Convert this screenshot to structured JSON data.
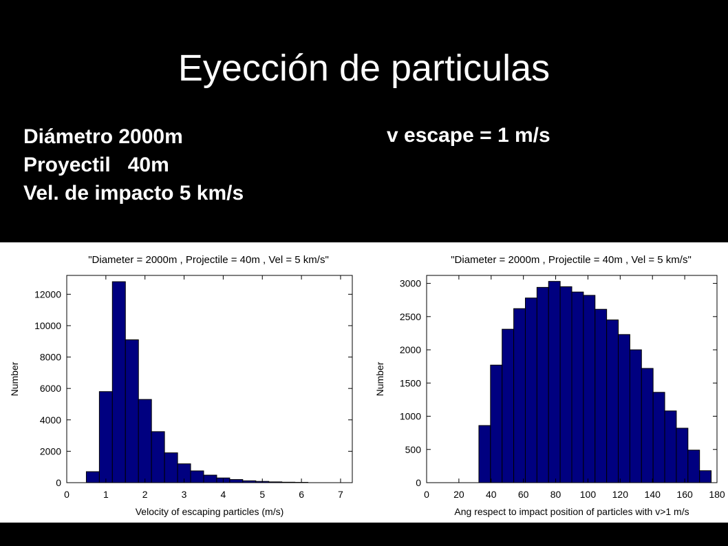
{
  "slide": {
    "title": "Eyección de particulas",
    "params": [
      "Diámetro 2000m",
      "Proyectil   40m",
      "Vel. de impacto 5 km/s"
    ],
    "v_escape": "v escape = 1 m/s"
  },
  "bar_color": "#000080",
  "chart_data": [
    {
      "type": "bar",
      "title": "\"Diameter = 2000m , Projectile = 40m , Vel = 5 km/s\"",
      "xlabel": "Velocity of escaping particles (m/s)",
      "ylabel": "Number",
      "xlim": [
        0,
        7.3
      ],
      "ylim": [
        0,
        13200
      ],
      "xticks": [
        0,
        1,
        2,
        3,
        4,
        5,
        6,
        7
      ],
      "yticks": [
        0,
        2000,
        4000,
        6000,
        8000,
        10000,
        12000
      ],
      "bin_width": 0.3333,
      "x": [
        0.667,
        1.0,
        1.333,
        1.667,
        2.0,
        2.333,
        2.667,
        3.0,
        3.333,
        3.667,
        4.0,
        4.333,
        4.667,
        5.0,
        5.333,
        5.667,
        6.0
      ],
      "values": [
        700,
        5800,
        12800,
        9100,
        5300,
        3250,
        1900,
        1200,
        750,
        480,
        300,
        200,
        120,
        80,
        50,
        30,
        20
      ]
    },
    {
      "type": "bar",
      "title": "\"Diameter = 2000m , Projectile = 40m , Vel = 5 km/s\"",
      "xlabel": "Ang respect to impact position of particles with v>1 m/s",
      "ylabel": "Number",
      "xlim": [
        0,
        180
      ],
      "ylim": [
        0,
        3120
      ],
      "xticks": [
        0,
        20,
        40,
        60,
        80,
        100,
        120,
        140,
        160,
        180
      ],
      "yticks": [
        0,
        500,
        1000,
        1500,
        2000,
        2500,
        3000
      ],
      "bin_width": 7.2,
      "x": [
        36,
        43.2,
        50.4,
        57.6,
        64.8,
        72,
        79.2,
        86.4,
        93.6,
        100.8,
        108,
        115.2,
        122.4,
        129.6,
        136.8,
        144,
        151.2,
        158.4,
        165.6,
        172.8
      ],
      "values": [
        860,
        1770,
        2310,
        2620,
        2780,
        2940,
        3030,
        2950,
        2870,
        2820,
        2610,
        2450,
        2230,
        2000,
        1720,
        1360,
        1080,
        820,
        490,
        180
      ]
    }
  ]
}
